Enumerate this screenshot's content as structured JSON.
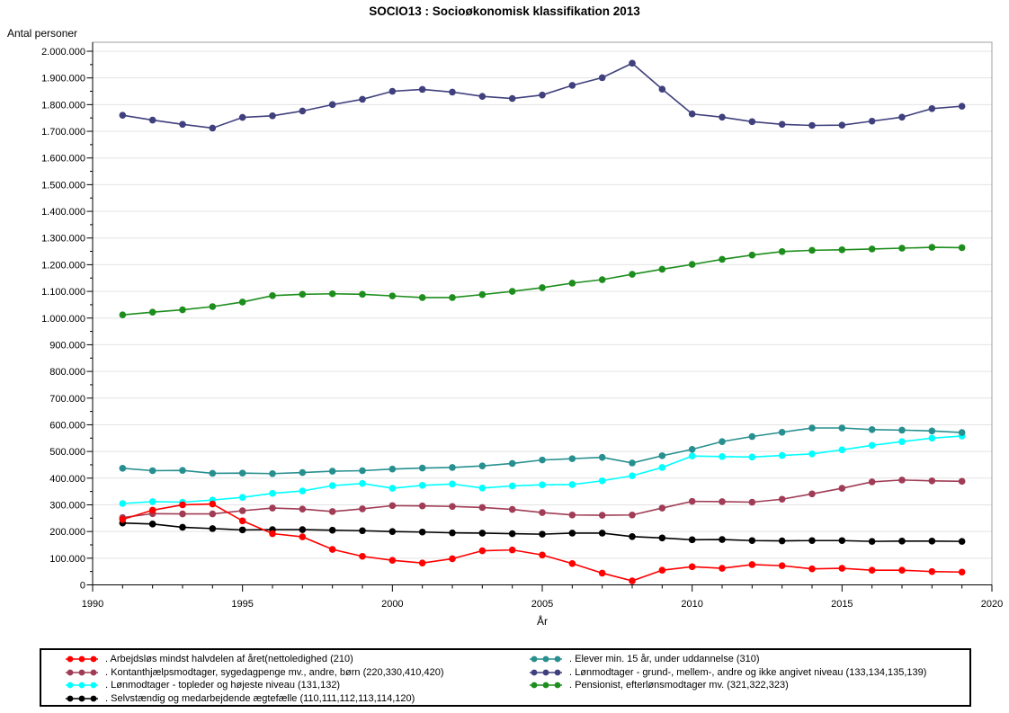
{
  "page": {
    "title": "SOCIO13 : Socioøkonomisk klassifikation 2013"
  },
  "chart_data": {
    "type": "line",
    "title": "SOCIO13 : Socioøkonomisk klassifikation 2013",
    "xlabel": "År",
    "ylabel": "Antal personer",
    "xlim": [
      1990,
      2020
    ],
    "ylim": [
      0,
      2000000
    ],
    "x_major_ticks": [
      1990,
      1995,
      2000,
      2005,
      2010,
      2015,
      2020
    ],
    "x_minor_tick_interval": 1,
    "y_major_tick_interval": 100000,
    "y_minor_tick_interval": 50000,
    "y_tick_labels": [
      "0",
      "100.000",
      "200.000",
      "300.000",
      "400.000",
      "500.000",
      "600.000",
      "700.000",
      "800.000",
      "900.000",
      "1.000.000",
      "1.100.000",
      "1.200.000",
      "1.300.000",
      "1.400.000",
      "1.500.000",
      "1.600.000",
      "1.700.000",
      "1.800.000",
      "1.900.000",
      "2.000.000"
    ],
    "grid": "horizontal-major",
    "grid_color": "#e3e3e3",
    "frame_color": "#a0a0a0",
    "axis_color": "#000000",
    "marker": "filled-circle",
    "legend_position": "bottom",
    "x": [
      1991,
      1992,
      1993,
      1994,
      1995,
      1996,
      1997,
      1998,
      1999,
      2000,
      2001,
      2002,
      2003,
      2004,
      2005,
      2006,
      2007,
      2008,
      2009,
      2010,
      2011,
      2012,
      2013,
      2014,
      2015,
      2016,
      2017,
      2018,
      2019
    ],
    "series": [
      {
        "key": "selvstaendig",
        "label": ". Selvstændig og medarbejdende ægtefælle (110,111,112,113,114,120)",
        "color": "#000000",
        "values": [
          232000,
          228000,
          216000,
          211000,
          206000,
          207000,
          207000,
          205000,
          203000,
          200000,
          198000,
          195000,
          194000,
          192000,
          190000,
          194000,
          194000,
          181000,
          176000,
          169000,
          170000,
          166000,
          165000,
          166000,
          166000,
          163000,
          164000,
          164000,
          163000
        ]
      },
      {
        "key": "kontanthjalp",
        "label": ". Kontanthjælpsmodtager, sygedagpenge mv., andre, børn (220,330,410,420)",
        "color": "#A03C55",
        "values": [
          252000,
          267000,
          266000,
          266000,
          278000,
          288000,
          284000,
          275000,
          285000,
          297000,
          296000,
          294000,
          290000,
          283000,
          271000,
          262000,
          261000,
          262000,
          288000,
          313000,
          312000,
          310000,
          321000,
          341000,
          362000,
          386000,
          393000,
          390000,
          388000
        ]
      },
      {
        "key": "topleder",
        "label": ". Lønmodtager - topleder og højeste niveau (131,132)",
        "color": "#00FFFF",
        "values": [
          305000,
          312000,
          310000,
          318000,
          328000,
          343000,
          352000,
          372000,
          380000,
          362000,
          373000,
          378000,
          363000,
          371000,
          375000,
          376000,
          390000,
          409000,
          440000,
          483000,
          481000,
          479000,
          485000,
          491000,
          506000,
          523000,
          537000,
          550000,
          558000
        ]
      },
      {
        "key": "elever",
        "label": ". Elever min. 15 år, under uddannelse (310)",
        "color": "#278F8F",
        "values": [
          437000,
          428000,
          429000,
          418000,
          419000,
          417000,
          421000,
          426000,
          428000,
          434000,
          438000,
          440000,
          446000,
          455000,
          468000,
          473000,
          478000,
          457000,
          484000,
          508000,
          537000,
          556000,
          572000,
          588000,
          588000,
          582000,
          580000,
          577000,
          571000
        ]
      },
      {
        "key": "lonmodtager-grund",
        "label": ". Lønmodtager - grund-, mellem-, andre og ikke angivet niveau (133,134,135,139)",
        "color": "#40407E",
        "values": [
          1760000,
          1742000,
          1726000,
          1712000,
          1752000,
          1758000,
          1776000,
          1800000,
          1820000,
          1850000,
          1857000,
          1847000,
          1831000,
          1823000,
          1836000,
          1872000,
          1901000,
          1955000,
          1858000,
          1765000,
          1753000,
          1736000,
          1726000,
          1722000,
          1723000,
          1738000,
          1753000,
          1785000,
          1794000
        ]
      },
      {
        "key": "pensionist",
        "label": ". Pensionist, efterlønsmodtager mv. (321,322,323)",
        "color": "#1D8E1D",
        "values": [
          1012000,
          1022000,
          1031000,
          1043000,
          1060000,
          1084000,
          1089000,
          1091000,
          1089000,
          1083000,
          1077000,
          1077000,
          1088000,
          1100000,
          1114000,
          1131000,
          1144000,
          1164000,
          1183000,
          1201000,
          1220000,
          1236000,
          1249000,
          1254000,
          1256000,
          1259000,
          1262000,
          1265000,
          1264000
        ]
      },
      {
        "key": "arbejdslos",
        "label": ". Arbejdsløs mindst halvdelen af året(nettoledighed (210)",
        "color": "#FF0000",
        "values": [
          245000,
          280000,
          300000,
          303000,
          240000,
          192000,
          180000,
          133000,
          107000,
          92000,
          82000,
          98000,
          128000,
          131000,
          112000,
          80000,
          44000,
          15000,
          55000,
          68000,
          62000,
          76000,
          72000,
          60000,
          62000,
          55000,
          55000,
          50000,
          48000
        ]
      }
    ],
    "legend_columns": [
      [
        "arbejdslos",
        "kontanthjalp",
        "topleder",
        "selvstaendig"
      ],
      [
        "elever",
        "lonmodtager-grund",
        "pensionist"
      ]
    ]
  }
}
